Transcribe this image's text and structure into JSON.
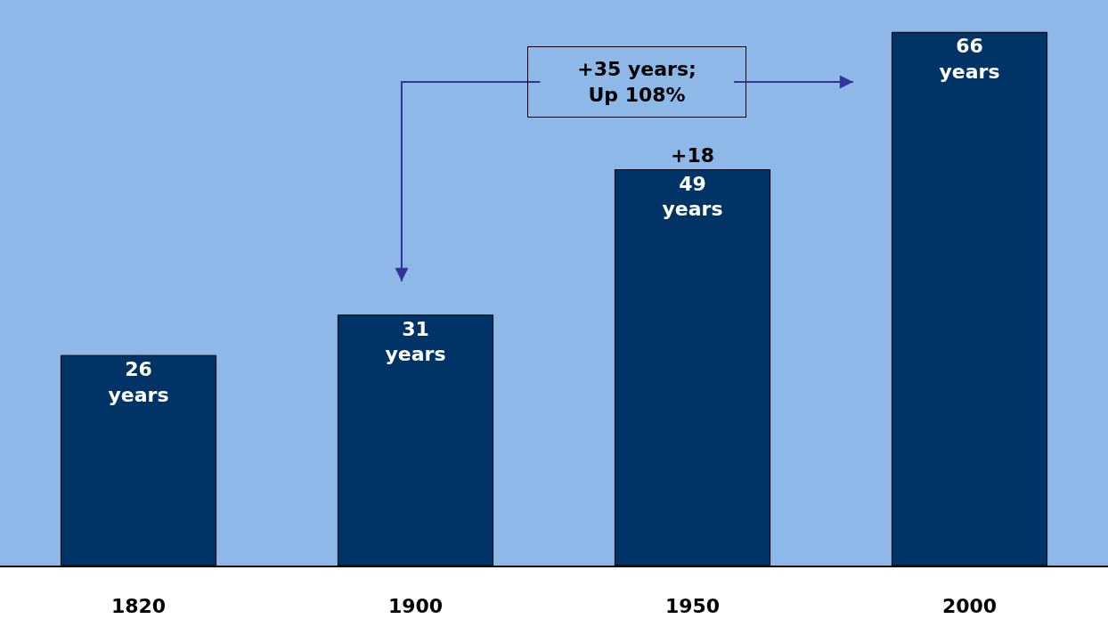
{
  "chart_data": {
    "type": "bar",
    "categories": [
      "1820",
      "1900",
      "1950",
      "2000"
    ],
    "values": [
      26,
      31,
      49,
      66
    ],
    "value_labels": [
      "26\nyears",
      "31\nyears",
      "49\nyears",
      "66\nyears"
    ],
    "color": "#003366",
    "ylim": [
      0,
      70
    ],
    "annotations": [
      "+35 years;\nUp 108%",
      {
        "text": "+18",
        "x": "1950",
        "y": 49
      }
    ],
    "grid": false,
    "legend": false
  }
}
